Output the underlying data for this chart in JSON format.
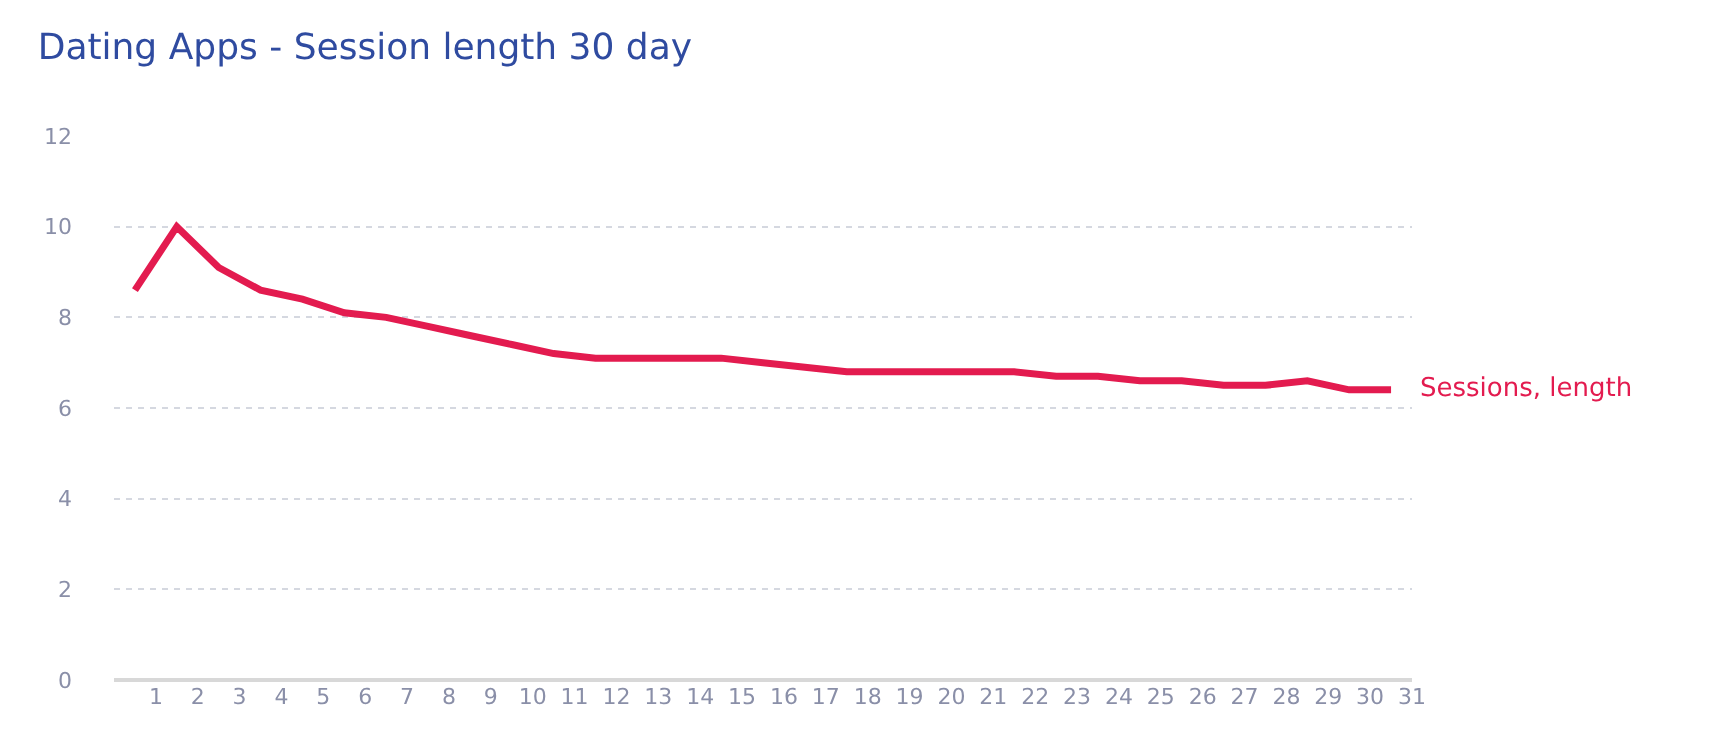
{
  "chart_data": {
    "type": "line",
    "title": "Dating Apps - Session length 30 day",
    "x": [
      0.5,
      1.5,
      2.5,
      3.5,
      4.5,
      5.5,
      6.5,
      7.5,
      8.5,
      9.5,
      10.5,
      11.5,
      12.5,
      13.5,
      14.5,
      15.5,
      16.5,
      17.5,
      18.5,
      19.5,
      20.5,
      21.5,
      22.5,
      23.5,
      24.5,
      25.5,
      26.5,
      27.5,
      28.5,
      29.5,
      30.5
    ],
    "series": [
      {
        "name": "Sessions, length",
        "color": "#e31b4f",
        "values": [
          8.6,
          10.0,
          9.1,
          8.6,
          8.4,
          8.1,
          8.0,
          7.8,
          7.6,
          7.4,
          7.2,
          7.1,
          7.1,
          7.1,
          7.1,
          7.0,
          6.9,
          6.8,
          6.8,
          6.8,
          6.8,
          6.8,
          6.7,
          6.7,
          6.6,
          6.6,
          6.5,
          6.5,
          6.6,
          6.4,
          6.4
        ]
      }
    ],
    "xlim": [
      0,
      31
    ],
    "xticks": [
      1,
      2,
      3,
      4,
      5,
      6,
      7,
      8,
      9,
      10,
      11,
      12,
      13,
      14,
      15,
      16,
      17,
      18,
      19,
      20,
      21,
      22,
      23,
      24,
      25,
      26,
      27,
      28,
      29,
      30,
      31
    ],
    "ylim": [
      0,
      12
    ],
    "yticks": [
      0,
      2,
      4,
      6,
      8,
      10,
      12
    ],
    "grid": "y",
    "legend": false,
    "marker": "none",
    "line_style": "solid"
  }
}
